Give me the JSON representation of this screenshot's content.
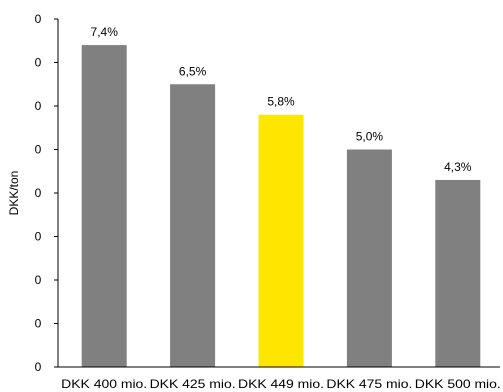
{
  "chart_data": {
    "type": "bar",
    "ylabel": "DKK/ton",
    "y_tick_labels": [
      "0",
      "0",
      "0",
      "0",
      "0",
      "0",
      "0",
      "0",
      "0"
    ],
    "categories": [
      "DKK 400 mio.",
      "DKK 425 mio.",
      "DKK 449 mio.",
      "DKK 475 mio.",
      "DKK 500 mio."
    ],
    "values": [
      7.4,
      6.5,
      5.8,
      5.0,
      4.3
    ],
    "data_labels": [
      "7,4%",
      "6,5%",
      "5,8%",
      "5,0%",
      "4,3%"
    ],
    "ylim": [
      0,
      8
    ],
    "colors": {
      "default_bar": "#808080",
      "highlight_bar": "#ffe600",
      "axis": "#000000"
    },
    "highlight_index": 2,
    "grid": false,
    "legend": "none"
  }
}
